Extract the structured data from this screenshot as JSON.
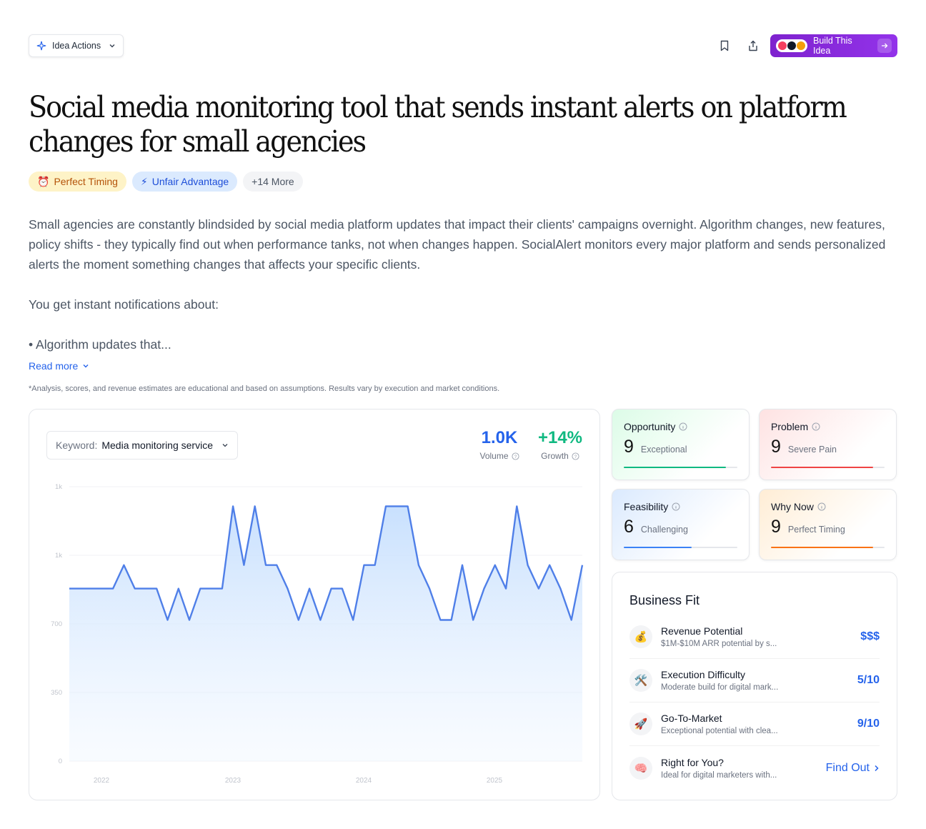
{
  "toolbar": {
    "idea_actions_label": "Idea Actions",
    "build_label": "Build This Idea"
  },
  "title": "Social media monitoring tool that sends instant alerts on platform changes for small agencies",
  "tags": [
    {
      "icon": "⏰",
      "label": "Perfect Timing"
    },
    {
      "icon": "⚡",
      "label": "Unfair Advantage"
    },
    {
      "label": "+14 More"
    }
  ],
  "description": {
    "p1": "Small agencies are constantly blindsided by social media platform updates that impact their clients' campaigns overnight. Algorithm changes, new features, policy shifts - they typically find out when performance tanks, not when changes happen. SocialAlert monitors every major platform and sends personalized alerts the moment something changes that affects your specific clients.",
    "p2": "You get instant notifications about:",
    "p3": "• Algorithm updates that...",
    "read_more": "Read more"
  },
  "disclaimer": "*Analysis, scores, and revenue estimates are educational and based on assumptions. Results vary by execution and market conditions.",
  "keyword": {
    "label": "Keyword:",
    "value": "Media monitoring service"
  },
  "stats": {
    "volume_value": "1.0K",
    "volume_label": "Volume",
    "growth_value": "+14%",
    "growth_label": "Growth"
  },
  "chart_data": {
    "type": "area",
    "x_labels": [
      "2022",
      "2023",
      "2024",
      "2025"
    ],
    "y_ticks": [
      "0",
      "350",
      "700",
      "1k",
      "1k"
    ],
    "ylim": [
      0,
      1400
    ],
    "grid": true,
    "color": "#4f7fe8",
    "values": [
      880,
      880,
      880,
      880,
      880,
      1000,
      880,
      880,
      880,
      720,
      880,
      720,
      880,
      880,
      880,
      1300,
      1000,
      1300,
      1000,
      1000,
      880,
      720,
      880,
      720,
      880,
      880,
      720,
      1000,
      1000,
      1300,
      1300,
      1300,
      1000,
      880,
      720,
      720,
      1000,
      720,
      880,
      1000,
      880,
      1300,
      1000,
      880,
      1000,
      880,
      720,
      1000
    ]
  },
  "scores": [
    {
      "title": "Opportunity",
      "score": "9",
      "label": "Exceptional",
      "level": 0.9,
      "color": "#10b981"
    },
    {
      "title": "Problem",
      "score": "9",
      "label": "Severe Pain",
      "level": 0.9,
      "color": "#ef4444"
    },
    {
      "title": "Feasibility",
      "score": "6",
      "label": "Challenging",
      "level": 0.6,
      "color": "#3b82f6"
    },
    {
      "title": "Why Now",
      "score": "9",
      "label": "Perfect Timing",
      "level": 0.9,
      "color": "#f97316"
    }
  ],
  "business_fit": {
    "title": "Business Fit",
    "rows": [
      {
        "icon": "💰",
        "title": "Revenue Potential",
        "desc": "$1M-$10M ARR potential by s...",
        "value": "$$$"
      },
      {
        "icon": "🛠️",
        "title": "Execution Difficulty",
        "desc": "Moderate build for digital mark...",
        "value": "5/10"
      },
      {
        "icon": "🚀",
        "title": "Go-To-Market",
        "desc": "Exceptional potential with clea...",
        "value": "9/10"
      },
      {
        "icon": "🧠",
        "title": "Right for You?",
        "desc": "Ideal for digital marketers with...",
        "value": "Find Out"
      }
    ]
  }
}
